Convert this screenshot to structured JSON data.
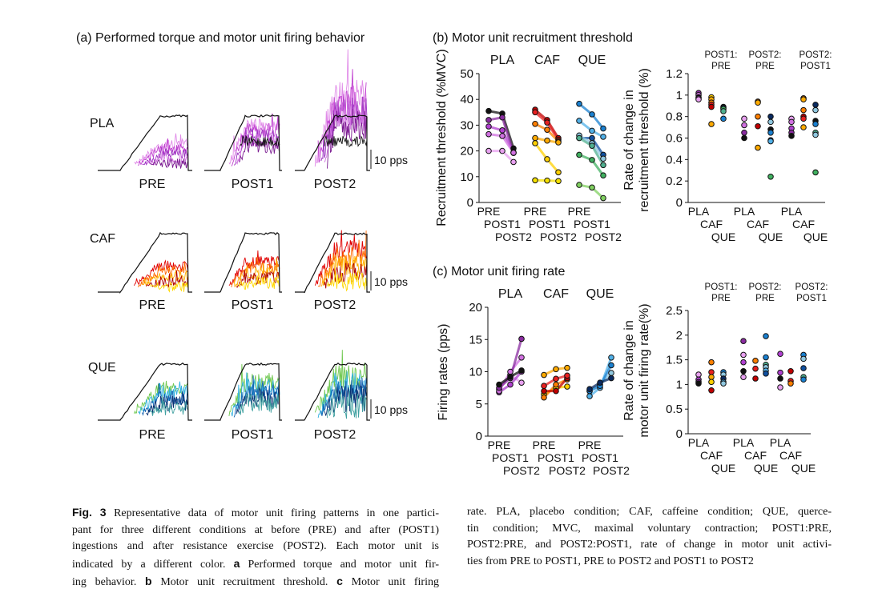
{
  "panel_titles": {
    "a": "(a) Performed torque and motor unit firing behavior",
    "b": "(b) Motor unit recruitment threshold",
    "c": "(c) Motor unit firing rate"
  },
  "chart_data": [
    {
      "panel": "a",
      "type": "line",
      "rows": [
        "PLA",
        "CAF",
        "QUE"
      ],
      "sessions": [
        "PRE",
        "POST1",
        "POST2"
      ],
      "scale_bar_label": "10 pps",
      "torque_color": "#111111",
      "row_colors": {
        "PLA": [
          "#e08ae8",
          "#c040d0",
          "#9b30c0",
          "#d070e0",
          "#7a1a90"
        ],
        "CAF": [
          "#e00000",
          "#ff6a00",
          "#ffb000",
          "#b00000",
          "#ffd800"
        ],
        "QUE": [
          "#70c850",
          "#30b0e0",
          "#1060b0",
          "#0a3070",
          "#40a0a0"
        ]
      }
    },
    {
      "panel": "b-left",
      "type": "line",
      "ylabel": "Recruitment threshold (%MVC)",
      "ylim": [
        0,
        50
      ],
      "yticks": [
        "0",
        "10",
        "20",
        "30",
        "40",
        "50"
      ],
      "groups": [
        "PLA",
        "CAF",
        "QUE"
      ],
      "x": [
        "PRE",
        "POST1",
        "POST2"
      ],
      "series": [
        {
          "group": 0,
          "color": "#111111",
          "values": [
            35.5,
            34.5,
            21
          ]
        },
        {
          "group": 0,
          "color": "#8a2ca0",
          "values": [
            32,
            33,
            19.2
          ]
        },
        {
          "group": 0,
          "color": "#b040d0",
          "values": [
            29.5,
            28,
            19.5
          ]
        },
        {
          "group": 0,
          "color": "#d070e0",
          "values": [
            26.5,
            25.8,
            19.3
          ]
        },
        {
          "group": 0,
          "color": "#e8a0f0",
          "values": [
            20,
            20,
            15.7
          ]
        },
        {
          "group": 1,
          "color": "#c00000",
          "values": [
            36,
            32,
            25
          ]
        },
        {
          "group": 1,
          "color": "#e82020",
          "values": [
            35,
            31,
            24.3
          ]
        },
        {
          "group": 1,
          "color": "#ff7f00",
          "values": [
            30.5,
            28.2,
            23.7
          ]
        },
        {
          "group": 1,
          "color": "#ffaa00",
          "values": [
            25,
            24,
            23.3
          ]
        },
        {
          "group": 1,
          "color": "#ffd000",
          "values": [
            23,
            16.8,
            11.7
          ]
        },
        {
          "group": 1,
          "color": "#f5e000",
          "values": [
            8.6,
            8.5,
            8.3
          ]
        },
        {
          "group": 2,
          "color": "#1a80d0",
          "values": [
            38.3,
            34.2,
            28.7
          ]
        },
        {
          "group": 2,
          "color": "#50b0e8",
          "values": [
            31.7,
            27.8,
            25.5
          ]
        },
        {
          "group": 2,
          "color": "#1050a0",
          "values": [
            25,
            25,
            18.5
          ]
        },
        {
          "group": 2,
          "color": "#90c8e0",
          "values": [
            26,
            23,
            17
          ]
        },
        {
          "group": 2,
          "color": "#50b090",
          "values": [
            25,
            22,
            14.5
          ]
        },
        {
          "group": 2,
          "color": "#40b060",
          "values": [
            18.5,
            16.5,
            10.5
          ]
        },
        {
          "group": 2,
          "color": "#80d060",
          "values": [
            6.8,
            5.8,
            1.7
          ]
        }
      ]
    },
    {
      "panel": "b-right",
      "type": "scatter",
      "ylabel_lines": [
        "Rate of change in",
        "recruitment threshold (%)"
      ],
      "ylim": [
        0,
        1.2
      ],
      "yticks": [
        "0",
        "0.2",
        "0.4",
        "0.6",
        "0.8",
        "1",
        "1.2"
      ],
      "group_headers": [
        [
          "POST1:",
          "PRE"
        ],
        [
          "POST2:",
          "PRE"
        ],
        [
          "POST2:",
          "POST1"
        ]
      ],
      "categories": [
        "PLA",
        "CAF",
        "QUE",
        "PLA",
        "CAF",
        "QUE",
        "PLA",
        "CAF",
        "QUE"
      ],
      "points": [
        [
          [
            1.02,
            "#8a2ca0"
          ],
          [
            1.0,
            "#d070e0"
          ],
          [
            0.98,
            "#111111"
          ],
          [
            0.97,
            "#b040d0"
          ],
          [
            0.96,
            "#e8a0f0"
          ]
        ],
        [
          [
            0.98,
            "#ffd000"
          ],
          [
            0.96,
            "#ffaa00"
          ],
          [
            0.93,
            "#ff7f00"
          ],
          [
            0.91,
            "#e82020"
          ],
          [
            0.89,
            "#c00000"
          ],
          [
            0.73,
            "#ffaa00"
          ]
        ],
        [
          [
            0.89,
            "#111111"
          ],
          [
            0.88,
            "#1050a0"
          ],
          [
            0.87,
            "#40b060"
          ],
          [
            0.85,
            "#50b090"
          ],
          [
            0.78,
            "#1a80d0"
          ]
        ],
        [
          [
            0.78,
            "#e8a0f0"
          ],
          [
            0.72,
            "#d070e0"
          ],
          [
            0.65,
            "#8a2ca0"
          ],
          [
            0.6,
            "#111111"
          ]
        ],
        [
          [
            0.94,
            "#ff7f00"
          ],
          [
            0.93,
            "#ffaa00"
          ],
          [
            0.8,
            "#ff7f00"
          ],
          [
            0.71,
            "#c00000"
          ],
          [
            0.51,
            "#ffaa00"
          ]
        ],
        [
          [
            0.8,
            "#0a2a60"
          ],
          [
            0.75,
            "#90c8e0"
          ],
          [
            0.68,
            "#111111"
          ],
          [
            0.65,
            "#1a80d0"
          ],
          [
            0.58,
            "#1050a0"
          ],
          [
            0.57,
            "#50b0e8"
          ],
          [
            0.24,
            "#40b060"
          ]
        ],
        [
          [
            0.78,
            "#e8a0f0"
          ],
          [
            0.75,
            "#d070e0"
          ],
          [
            0.69,
            "#b040d0"
          ],
          [
            0.65,
            "#8a2ca0"
          ],
          [
            0.62,
            "#111111"
          ]
        ],
        [
          [
            0.97,
            "#ff7f00"
          ],
          [
            0.96,
            "#ffaa00"
          ],
          [
            0.86,
            "#ff7f00"
          ],
          [
            0.8,
            "#c00000"
          ],
          [
            0.78,
            "#e82020"
          ],
          [
            0.7,
            "#ffaa00"
          ]
        ],
        [
          [
            0.91,
            "#0a2a60"
          ],
          [
            0.86,
            "#90c8e0"
          ],
          [
            0.76,
            "#111111"
          ],
          [
            0.73,
            "#1a80d0"
          ],
          [
            0.65,
            "#50b090"
          ],
          [
            0.63,
            "#90c8e0"
          ],
          [
            0.28,
            "#40b060"
          ]
        ]
      ]
    },
    {
      "panel": "c-left",
      "type": "line",
      "ylabel": "Firing rates (pps)",
      "ylim": [
        0,
        20
      ],
      "yticks": [
        "0",
        "5",
        "10",
        "15",
        "20"
      ],
      "groups": [
        "PLA",
        "CAF",
        "QUE"
      ],
      "x": [
        "PRE",
        "POST1",
        "POST2"
      ],
      "series": [
        {
          "group": 0,
          "color": "#e8a0f0",
          "values": [
            7.3,
            9.5,
            8.3
          ]
        },
        {
          "group": 0,
          "color": "#b040d0",
          "values": [
            6.8,
            8,
            10
          ]
        },
        {
          "group": 0,
          "color": "#d070e0",
          "values": [
            7,
            10,
            12.2
          ]
        },
        {
          "group": 0,
          "color": "#8a2ca0",
          "values": [
            7.5,
            9,
            15.1
          ]
        },
        {
          "group": 0,
          "color": "#111111",
          "values": [
            8,
            9.2,
            10.2
          ]
        },
        {
          "group": 1,
          "color": "#ffd000",
          "values": [
            6.5,
            7.5,
            7.7
          ]
        },
        {
          "group": 1,
          "color": "#ff7f00",
          "values": [
            6,
            8,
            8.8
          ]
        },
        {
          "group": 1,
          "color": "#ffaa00",
          "values": [
            9.5,
            10.4,
            10.6
          ]
        },
        {
          "group": 1,
          "color": "#c00000",
          "values": [
            7,
            7,
            9
          ]
        },
        {
          "group": 1,
          "color": "#e82020",
          "values": [
            7.8,
            8.9,
            9.4
          ]
        },
        {
          "group": 2,
          "color": "#50b0e8",
          "values": [
            6.2,
            7.5,
            12.2
          ]
        },
        {
          "group": 2,
          "color": "#90c8e0",
          "values": [
            7,
            8,
            9.8
          ]
        },
        {
          "group": 2,
          "color": "#1a80d0",
          "values": [
            7,
            7.8,
            11
          ]
        },
        {
          "group": 2,
          "color": "#0a2a60",
          "values": [
            7.3,
            8.3,
            9
          ]
        }
      ]
    },
    {
      "panel": "c-right",
      "type": "scatter",
      "ylabel_lines": [
        "Rate of change in",
        "motor unit firing rate(%)"
      ],
      "ylim": [
        0,
        2.5
      ],
      "yticks": [
        "0",
        "0.5",
        "1",
        "1.5",
        "2",
        "2.5"
      ],
      "group_headers": [
        [
          "POST1:",
          "PRE"
        ],
        [
          "POST2:",
          "PRE"
        ],
        [
          "POST2:",
          "POST1"
        ]
      ],
      "categories": [
        "PLA",
        "CAF",
        "QUE",
        "PLA",
        "CAF",
        "QUE",
        "PLA",
        "CAF",
        "QUE"
      ],
      "points": [
        [
          [
            1.2,
            "#e8a0f0"
          ],
          [
            1.1,
            "#b040d0"
          ],
          [
            1.05,
            "#8a2ca0"
          ],
          [
            1.02,
            "#111111"
          ]
        ],
        [
          [
            1.45,
            "#ff7f00"
          ],
          [
            1.25,
            "#e82020"
          ],
          [
            1.15,
            "#ffaa00"
          ],
          [
            1.05,
            "#ffd000"
          ],
          [
            0.88,
            "#c00000"
          ]
        ],
        [
          [
            1.25,
            "#1a80d0"
          ],
          [
            1.2,
            "#90c8e0"
          ],
          [
            1.12,
            "#0a2a60"
          ],
          [
            1.05,
            "#50b0e8"
          ],
          [
            1.02,
            "#90c8e0"
          ]
        ],
        [
          [
            1.88,
            "#8a2ca0"
          ],
          [
            1.6,
            "#e8a0f0"
          ],
          [
            1.45,
            "#b040d0"
          ],
          [
            1.27,
            "#111111"
          ],
          [
            1.15,
            "#e8a0f0"
          ]
        ],
        [
          [
            1.48,
            "#ff7f00"
          ],
          [
            1.32,
            "#e82020"
          ],
          [
            1.12,
            "#c00000"
          ]
        ],
        [
          [
            1.98,
            "#1a80d0"
          ],
          [
            1.55,
            "#1a80d0"
          ],
          [
            1.4,
            "#50b090"
          ],
          [
            1.35,
            "#90c8e0"
          ],
          [
            1.28,
            "#50b0e8"
          ],
          [
            1.22,
            "#1050a0"
          ]
        ],
        [
          [
            1.62,
            "#b040d0"
          ],
          [
            1.24,
            "#b040d0"
          ],
          [
            1.12,
            "#111111"
          ],
          [
            0.94,
            "#e8a0f0"
          ]
        ],
        [
          [
            1.27,
            "#c00000"
          ],
          [
            1.07,
            "#e82020"
          ],
          [
            1.02,
            "#ff7f00"
          ]
        ],
        [
          [
            1.6,
            "#1a80d0"
          ],
          [
            1.52,
            "#90c8e0"
          ],
          [
            1.33,
            "#1050a0"
          ],
          [
            1.15,
            "#50b090"
          ],
          [
            1.1,
            "#1a80d0"
          ]
        ]
      ]
    }
  ],
  "caption": {
    "left_lines": [
      [
        {
          "t": "Fig. 3",
          "b": true
        },
        {
          "t": "  Representative data of motor unit firing patterns in one partici-"
        }
      ],
      [
        {
          "t": "pant for three different conditions at before (PRE) and after (POST1)"
        }
      ],
      [
        {
          "t": "ingestions and after resistance exercise (POST2). Each motor unit is"
        }
      ],
      [
        {
          "t": "indicated by a different color. "
        },
        {
          "t": "a",
          "b": true
        },
        {
          "t": " Performed torque and motor unit fir-"
        }
      ],
      [
        {
          "t": "ing behavior. "
        },
        {
          "t": "b",
          "b": true
        },
        {
          "t": " Motor unit recruitment threshold. "
        },
        {
          "t": "c",
          "b": true
        },
        {
          "t": " Motor unit firing"
        }
      ]
    ],
    "right_lines": [
      [
        {
          "t": "rate. PLA, placebo condition; CAF, caffeine condition; QUE, querce-"
        }
      ],
      [
        {
          "t": "tin condition; MVC, maximal voluntary contraction; POST1:PRE,"
        }
      ],
      [
        {
          "t": "POST2:PRE, and POST2:POST1, rate of change in motor unit activi-"
        }
      ],
      [
        {
          "t": "ties from PRE to POST1, PRE to POST2 and POST1 to POST2"
        }
      ]
    ]
  }
}
